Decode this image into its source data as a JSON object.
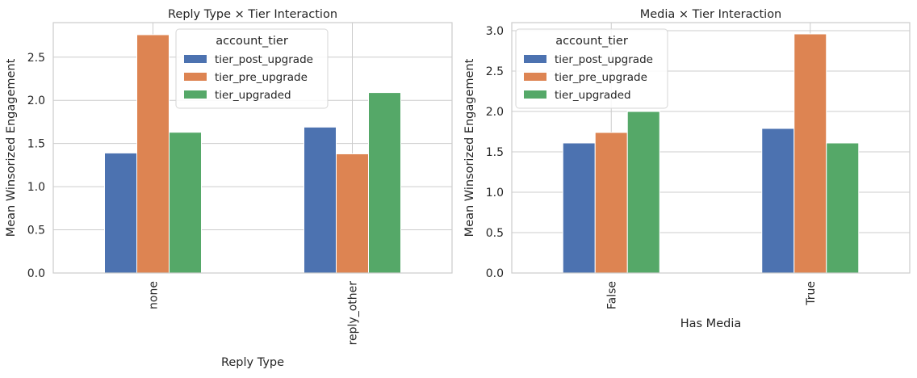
{
  "colors": {
    "tier_post_upgrade": "#4c72b0",
    "tier_pre_upgrade": "#dd8452",
    "tier_upgraded": "#55a868",
    "grid": "#cccccc",
    "axis_edge": "#cccccc"
  },
  "chart_data": [
    {
      "type": "bar",
      "title": "Reply Type × Tier Interaction",
      "xlabel": "Reply Type",
      "ylabel": "Mean Winsorized Engagement",
      "categories": [
        "none",
        "reply_other"
      ],
      "ylim": [
        0,
        2.9
      ],
      "yticks": [
        0.0,
        0.5,
        1.0,
        1.5,
        2.0,
        2.5
      ],
      "ytick_labels": [
        "0.0",
        "0.5",
        "1.0",
        "1.5",
        "2.0",
        "2.5"
      ],
      "grid": true,
      "legend": {
        "title": "account_tier",
        "placement": "top-center"
      },
      "series": [
        {
          "name": "tier_post_upgrade",
          "values": [
            1.39,
            1.69
          ]
        },
        {
          "name": "tier_pre_upgrade",
          "values": [
            2.76,
            1.38
          ]
        },
        {
          "name": "tier_upgraded",
          "values": [
            1.63,
            2.09
          ]
        }
      ]
    },
    {
      "type": "bar",
      "title": "Media × Tier Interaction",
      "xlabel": "Has Media",
      "ylabel": "Mean Winsorized Engagement",
      "categories": [
        "False",
        "True"
      ],
      "ylim": [
        0,
        3.1
      ],
      "yticks": [
        0.0,
        0.5,
        1.0,
        1.5,
        2.0,
        2.5,
        3.0
      ],
      "ytick_labels": [
        "0.0",
        "0.5",
        "1.0",
        "1.5",
        "2.0",
        "2.5",
        "3.0"
      ],
      "grid": true,
      "legend": {
        "title": "account_tier",
        "placement": "top-left"
      },
      "series": [
        {
          "name": "tier_post_upgrade",
          "values": [
            1.61,
            1.79
          ]
        },
        {
          "name": "tier_pre_upgrade",
          "values": [
            1.74,
            2.96
          ]
        },
        {
          "name": "tier_upgraded",
          "values": [
            2.0,
            1.61
          ]
        }
      ]
    }
  ]
}
